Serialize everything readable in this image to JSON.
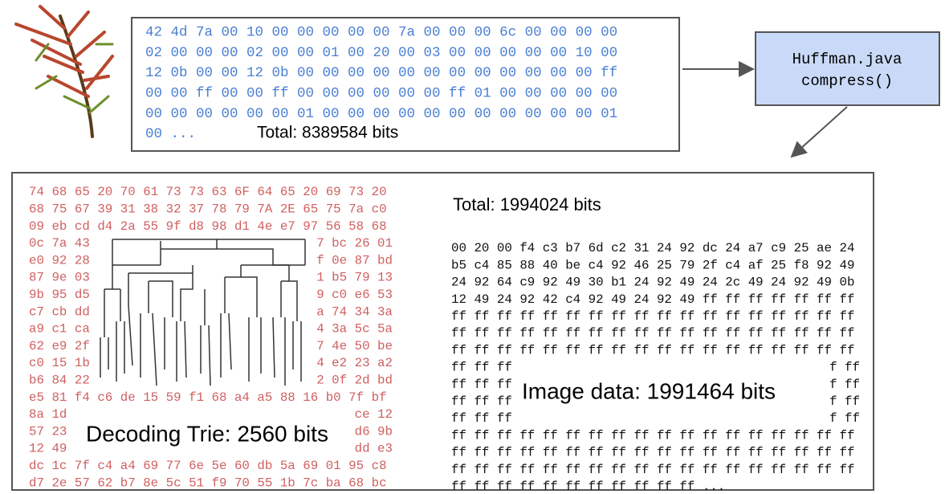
{
  "input": {
    "hex_lines": [
      "42 4d 7a 00 10 00 00 00 00 00 7a 00 00 00 6c 00 00 00 00",
      "02 00 00 00 02 00 00 01 00 20 00 03 00 00 00 00 00 10 00",
      "12 0b 00 00 12 0b 00 00 00 00 00 00 00 00 00 00 00 00 ff",
      "00 00 ff 00 00 ff 00 00 00 00 00 00 ff 01 00 00 00 00 00",
      "00 00 00 00 00 00 01 00 00 00 00 00 00 00 00 00 00 00 01",
      "00 ..."
    ],
    "total": "Total: 8389584 bits"
  },
  "process": {
    "lines": [
      "Huffman.java",
      "compress()"
    ]
  },
  "output": {
    "trie_rows": [
      [
        "74 68 65 20 70 61 73 73 63 6F 64 65 20 69 73 20"
      ],
      [
        "68 75 67 39 31 38 32 37 78 79 7A 2E 65 75 7a c0"
      ],
      [
        "09 eb cd d4 2a 55 9f d8 98 d1 4e e7 97 56 58 68"
      ],
      [
        "0c 7a 43",
        "7 bc 26 01"
      ],
      [
        "e0 92 28",
        "f 0e 87 bd"
      ],
      [
        "87 9e 03",
        "1 b5 79 13"
      ],
      [
        "9b 95 d5",
        "9 c0 e6 53"
      ],
      [
        "c7 cb dd",
        "a 74 34 3a"
      ],
      [
        "a9 c1 ca",
        "4 3a 5c 5a"
      ],
      [
        "62 e9 2f",
        "7 4e 50 be"
      ],
      [
        "c0 15 1b",
        "4 e2 23 a2"
      ],
      [
        "b6 84 22",
        "2 0f 2d bd"
      ],
      [
        "e5 81 f4 c6 de 15 59 f1 68 a4 a5 88 16 b0 7f bf"
      ],
      [
        "8a 1d",
        "ce 12"
      ],
      [
        "57 23",
        "d6 9b"
      ],
      [
        "12 49",
        "dd e3"
      ],
      [
        "dc 1c 7f c4 a4 69 77 6e 5e 60 db 5a 69 01 95 c8"
      ],
      [
        "d7 2e 57 62 b7 8e 5c 51 f9 70 55 1b 7c ba 68 bc"
      ]
    ],
    "trie_label": "Decoding Trie: 2560 bits",
    "total": "Total: 1994024 bits",
    "image_rows": [
      [
        "00 20 00 f4 c3 b7 6d c2 31 24 92 dc 24 a7 c9 25 ae 24"
      ],
      [
        "b5 c4 85 88 40 be c4 92 46 25 79 2f c4 af 25 f8 92 49"
      ],
      [
        "24 92 64 c9 92 49 30 b1 24 92 49 24 2c 49 24 92 49 0b"
      ],
      [
        "12 49 24 92 42 c4 92 49 24 92 49 ff ff ff ff ff ff ff"
      ],
      [
        "ff ff ff ff ff ff ff ff ff ff ff ff ff ff ff ff ff ff"
      ],
      [
        "ff ff ff ff ff ff ff ff ff ff ff ff ff ff ff ff ff ff"
      ],
      [
        "ff ff ff ff ff ff ff ff ff ff ff ff ff ff ff ff ff ff"
      ],
      [
        "ff ff ff",
        "f ff"
      ],
      [
        "ff ff ff",
        "f ff"
      ],
      [
        "ff ff ff",
        "f ff"
      ],
      [
        "ff ff ff",
        "f ff"
      ],
      [
        "ff ff ff ff ff ff ff ff ff ff ff ff ff ff ff ff ff ff"
      ],
      [
        "ff ff ff ff ff ff ff ff ff ff ff ff ff ff ff ff ff ff"
      ],
      [
        "ff ff ff ff ff ff ff ff ff ff ff ff ff ff ff ff ff ff"
      ],
      [
        "ff ff ff ff ff ff ff ff ff ff ff ..."
      ]
    ],
    "image_label": "Image data: 1991464 bits"
  }
}
